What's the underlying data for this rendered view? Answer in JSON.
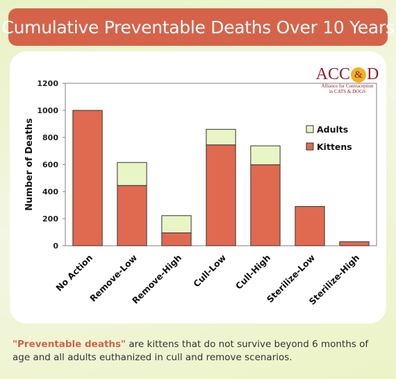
{
  "header": {
    "title": "Cumulative Preventable Deaths Over 10 Years"
  },
  "logo": {
    "acronym_left": "ACC",
    "ampersand": "&",
    "acronym_right": "D",
    "tagline_line1": "Alliance for Contraception",
    "tagline_line2": "in CATS & DOGS"
  },
  "footnote": {
    "highlight": "\"Preventable deaths\"",
    "text": " are kittens that do not survive beyond 6 months of age and all adults euthanized in cull and remove scenarios."
  },
  "colors": {
    "kittens": "#e06a50",
    "adults": "#eaf5c6",
    "banner": "#d5634a",
    "logo": "#8a2332",
    "logo_accent": "#f0b21e"
  },
  "chart_data": {
    "type": "bar",
    "stacked": true,
    "categories": [
      "No Action",
      "Remove-Low",
      "Remove-High",
      "Cull-Low",
      "Cull-High",
      "Sterilize-Low",
      "Sterilize-High"
    ],
    "series": [
      {
        "name": "Kittens",
        "values": [
          1000,
          445,
          95,
          745,
          598,
          290,
          30
        ]
      },
      {
        "name": "Adults",
        "values": [
          0,
          170,
          127,
          115,
          140,
          0,
          0
        ]
      }
    ],
    "ylabel": "Number of Deaths",
    "xlabel": "",
    "ylim": [
      0,
      1200
    ],
    "yticks": [
      0,
      200,
      400,
      600,
      800,
      1000,
      1200
    ],
    "grid": false,
    "legend": {
      "position": "right",
      "entries": [
        "Adults",
        "Kittens"
      ]
    }
  }
}
